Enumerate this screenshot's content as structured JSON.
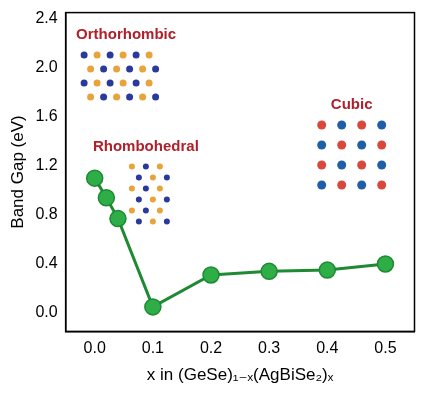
{
  "chart_data": {
    "type": "line",
    "x_label": "x in (GeSe)₁₋ₓ(AgBiSe₂)ₓ",
    "y_label": "Band Gap (eV)",
    "x": [
      0,
      0.02,
      0.04,
      0.1,
      0.2,
      0.3,
      0.4,
      0.5
    ],
    "values": [
      1.1,
      0.94,
      0.77,
      0.05,
      0.31,
      0.34,
      0.35,
      0.4
    ],
    "color": "#1e8a33",
    "marker": "circle",
    "line_style": "solid",
    "xlim": [
      -0.05,
      0.55
    ],
    "ylim": [
      -0.15,
      2.45
    ],
    "xticks": [
      {
        "value": 0,
        "label": "0.0"
      },
      0.1,
      0.2,
      0.3,
      0.4,
      0.5
    ],
    "yticks": [
      {
        "value": 0,
        "label": "0.0"
      },
      0.4,
      0.8,
      1.2,
      1.6,
      {
        "value": 2,
        "label": "2.0"
      },
      2.4
    ],
    "grid": false,
    "annotations": [
      "Orthorhombic",
      "Rhombohedral",
      "Cubic"
    ]
  }
}
